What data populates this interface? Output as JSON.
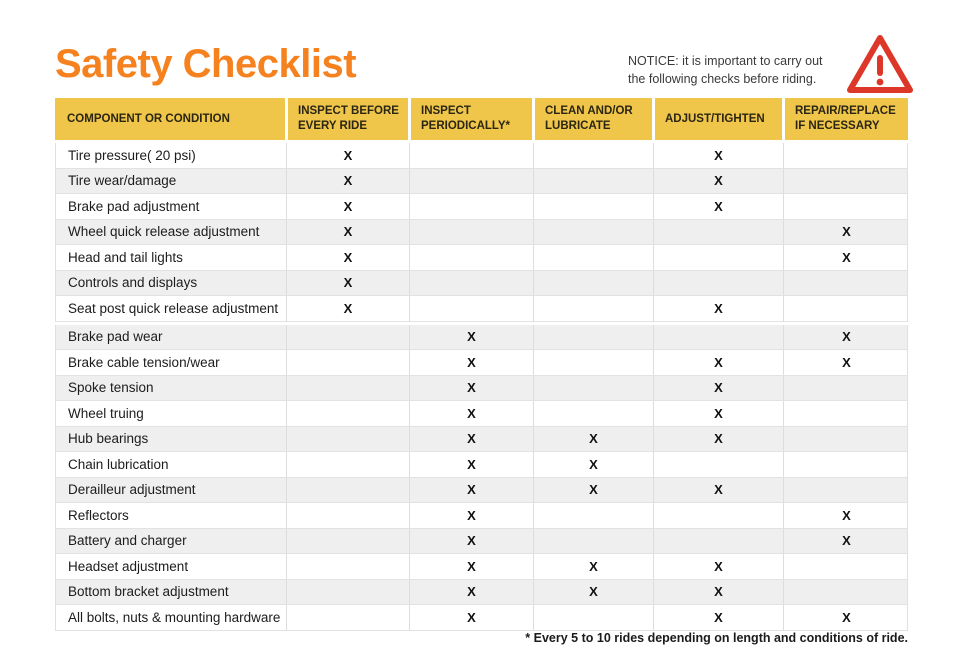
{
  "page": {
    "title": "Safety Checklist",
    "notice": "NOTICE: it is important to carry out the following checks before riding.",
    "footnote": "* Every 5 to 10 rides depending on length and conditions of ride."
  },
  "colors": {
    "title_orange": "#F5821F",
    "header_yellow": "#EFC64A",
    "warning_red": "#DD372A",
    "row_alt_gray": "#EFEFEF"
  },
  "icons": {
    "warning": "warning-triangle-icon"
  },
  "table": {
    "mark_symbol": "X",
    "columns": [
      "COMPONENT OR CONDITION",
      "INSPECT BEFORE EVERY RIDE",
      "INSPECT PERIODICALLY*",
      "CLEAN AND/OR LUBRICATE",
      "ADJUST/TIGHTEN",
      "REPAIR/REPLACE IF NECESSARY"
    ],
    "groups": [
      {
        "rows": [
          {
            "label": "Tire pressure( 20 psi)",
            "marks": [
              "X",
              "",
              "",
              "X",
              ""
            ]
          },
          {
            "label": "Tire wear/damage",
            "marks": [
              "X",
              "",
              "",
              "X",
              ""
            ]
          },
          {
            "label": "Brake pad adjustment",
            "marks": [
              "X",
              "",
              "",
              "X",
              ""
            ]
          },
          {
            "label": "Wheel quick release adjustment",
            "marks": [
              "X",
              "",
              "",
              "",
              "X"
            ]
          },
          {
            "label": "Head and tail lights",
            "marks": [
              "X",
              "",
              "",
              "",
              "X"
            ]
          },
          {
            "label": "Controls and displays",
            "marks": [
              "X",
              "",
              "",
              "",
              ""
            ]
          },
          {
            "label": "Seat post quick release adjustment",
            "marks": [
              "X",
              "",
              "",
              "X",
              ""
            ]
          }
        ]
      },
      {
        "rows": [
          {
            "label": "Brake pad wear",
            "marks": [
              "",
              "X",
              "",
              "",
              "X"
            ]
          },
          {
            "label": "Brake cable tension/wear",
            "marks": [
              "",
              "X",
              "",
              "X",
              "X"
            ]
          },
          {
            "label": "Spoke tension",
            "marks": [
              "",
              "X",
              "",
              "X",
              ""
            ]
          },
          {
            "label": "Wheel truing",
            "marks": [
              "",
              "X",
              "",
              "X",
              ""
            ]
          },
          {
            "label": "Hub bearings",
            "marks": [
              "",
              "X",
              "X",
              "X",
              ""
            ]
          },
          {
            "label": "Chain lubrication",
            "marks": [
              "",
              "X",
              "X",
              "",
              ""
            ]
          },
          {
            "label": "Derailleur adjustment",
            "marks": [
              "",
              "X",
              "X",
              "X",
              ""
            ]
          },
          {
            "label": "Reflectors",
            "marks": [
              "",
              "X",
              "",
              "",
              "X"
            ]
          },
          {
            "label": "Battery and charger",
            "marks": [
              "",
              "X",
              "",
              "",
              "X"
            ]
          },
          {
            "label": "Headset adjustment",
            "marks": [
              "",
              "X",
              "X",
              "X",
              ""
            ]
          },
          {
            "label": "Bottom bracket adjustment",
            "marks": [
              "",
              "X",
              "X",
              "X",
              ""
            ]
          },
          {
            "label": "All bolts, nuts & mounting hardware",
            "marks": [
              "",
              "X",
              "",
              "X",
              "X"
            ]
          }
        ]
      }
    ]
  }
}
